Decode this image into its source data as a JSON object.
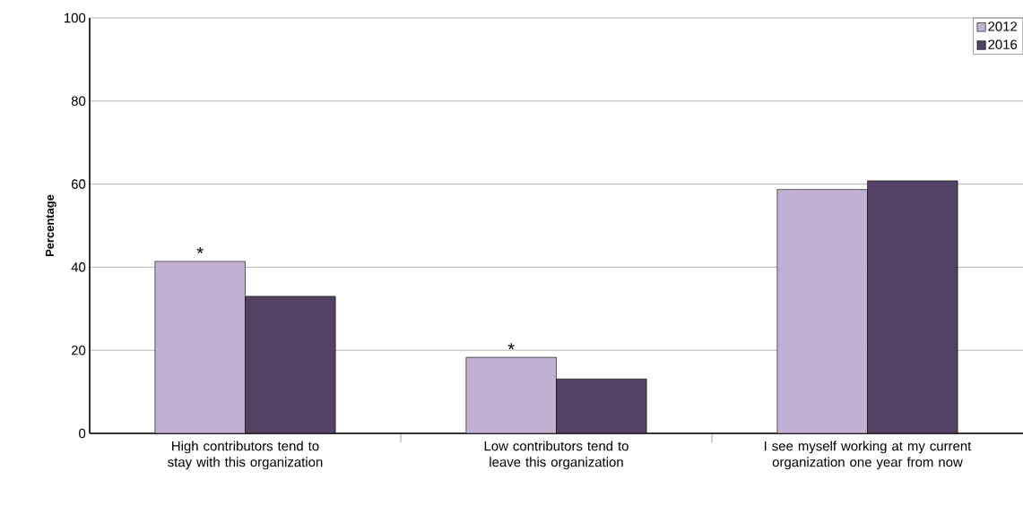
{
  "chart_data": {
    "type": "bar",
    "ylabel": "Percentage",
    "categories": [
      "High contributors tend to stay with this organization",
      "Low contributors tend to leave this organization",
      "I see myself working at my current organization one year from now"
    ],
    "series": [
      {
        "name": "2012",
        "color": "#bfb1d1",
        "values": [
          41.4,
          18.3,
          58.7
        ]
      },
      {
        "name": "2016",
        "color": "#524263",
        "values": [
          33.0,
          13.1,
          60.8
        ]
      }
    ],
    "ylim": [
      0,
      100
    ],
    "yticks": [
      0,
      20,
      40,
      60,
      80,
      100
    ],
    "grid": "y",
    "legend": "top right",
    "annotations": [
      "*",
      "*"
    ]
  }
}
